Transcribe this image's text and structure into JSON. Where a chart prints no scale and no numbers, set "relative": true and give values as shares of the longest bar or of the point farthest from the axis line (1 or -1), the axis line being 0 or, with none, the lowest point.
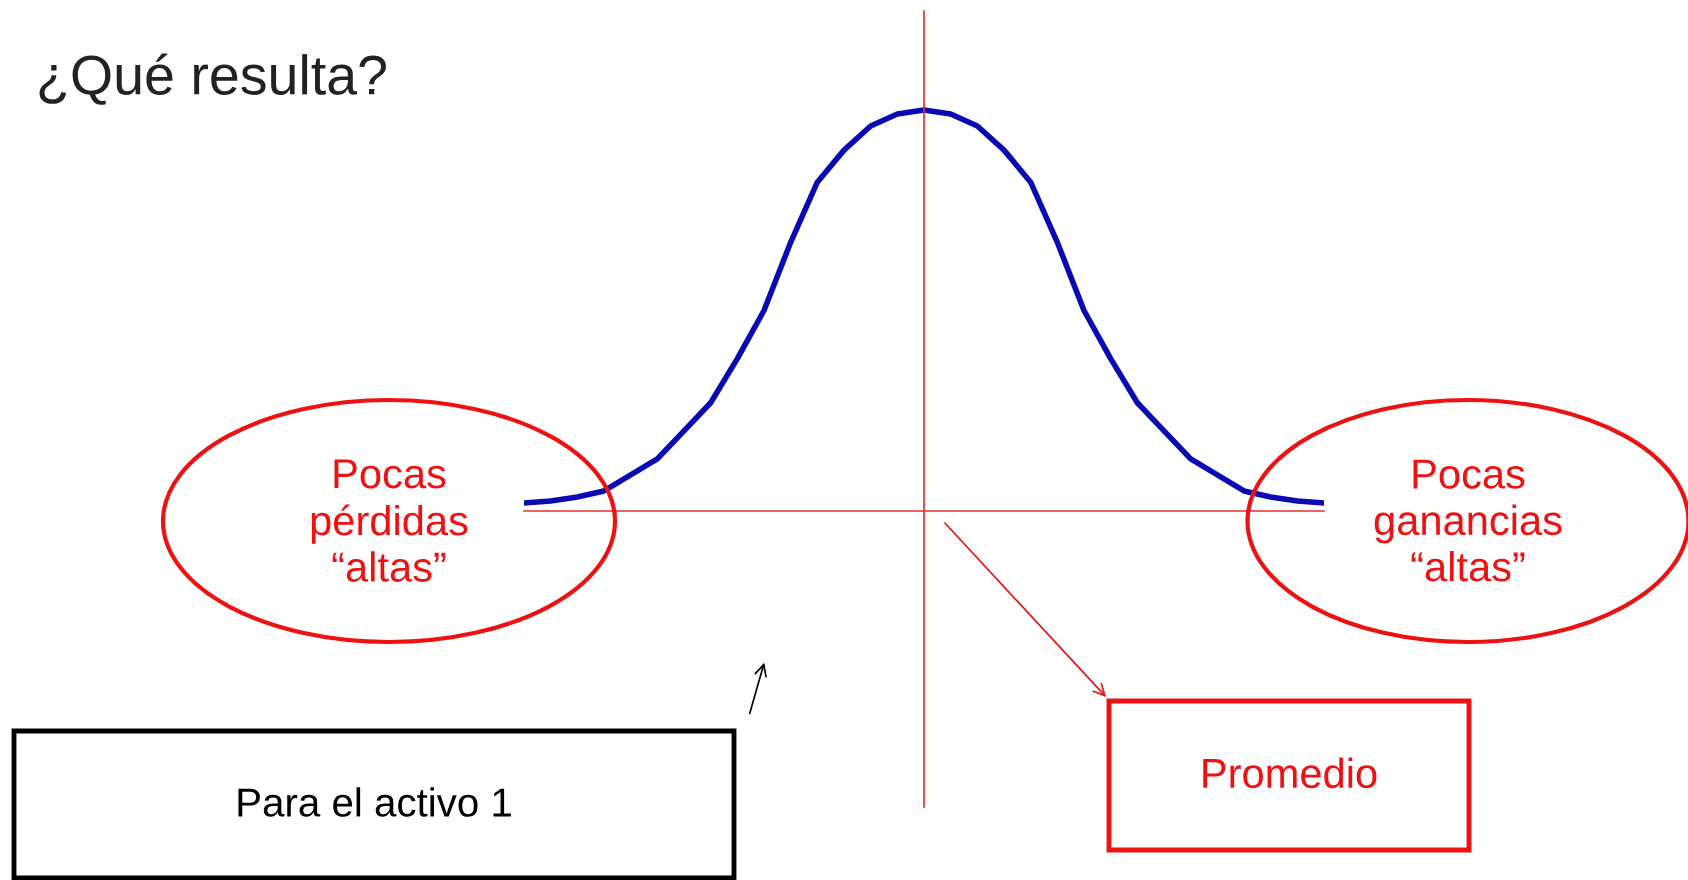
{
  "chart_data": {
    "type": "line",
    "title": "¿Qué resulta?",
    "relative": true,
    "categories": [
      null,
      null,
      null,
      null,
      null,
      null,
      null,
      null,
      null,
      null,
      null,
      null,
      null,
      null,
      null,
      null,
      null,
      null,
      null,
      null,
      null,
      null,
      null,
      null,
      null,
      null,
      null,
      null,
      null,
      null,
      null
    ],
    "series": [
      {
        "color": "#0a0ab4",
        "values": [
          0.02,
          0.025,
          0.035,
          0.05,
          0.09,
          0.13,
          0.2,
          0.27,
          0.38,
          0.5,
          0.67,
          0.82,
          0.9,
          0.96,
          0.99,
          1.0,
          0.99,
          0.96,
          0.9,
          0.82,
          0.67,
          0.5,
          0.38,
          0.27,
          0.2,
          0.13,
          0.09,
          0.05,
          0.035,
          0.025,
          0.02
        ]
      }
    ],
    "annotations": [
      "Pocas\npérdidas\n“altas”",
      "Pocas\nganancias\n“altas”",
      "Promedio",
      "Para el activo 1"
    ],
    "grid": false,
    "legend": false,
    "marker": "none",
    "line_style": "solid"
  }
}
